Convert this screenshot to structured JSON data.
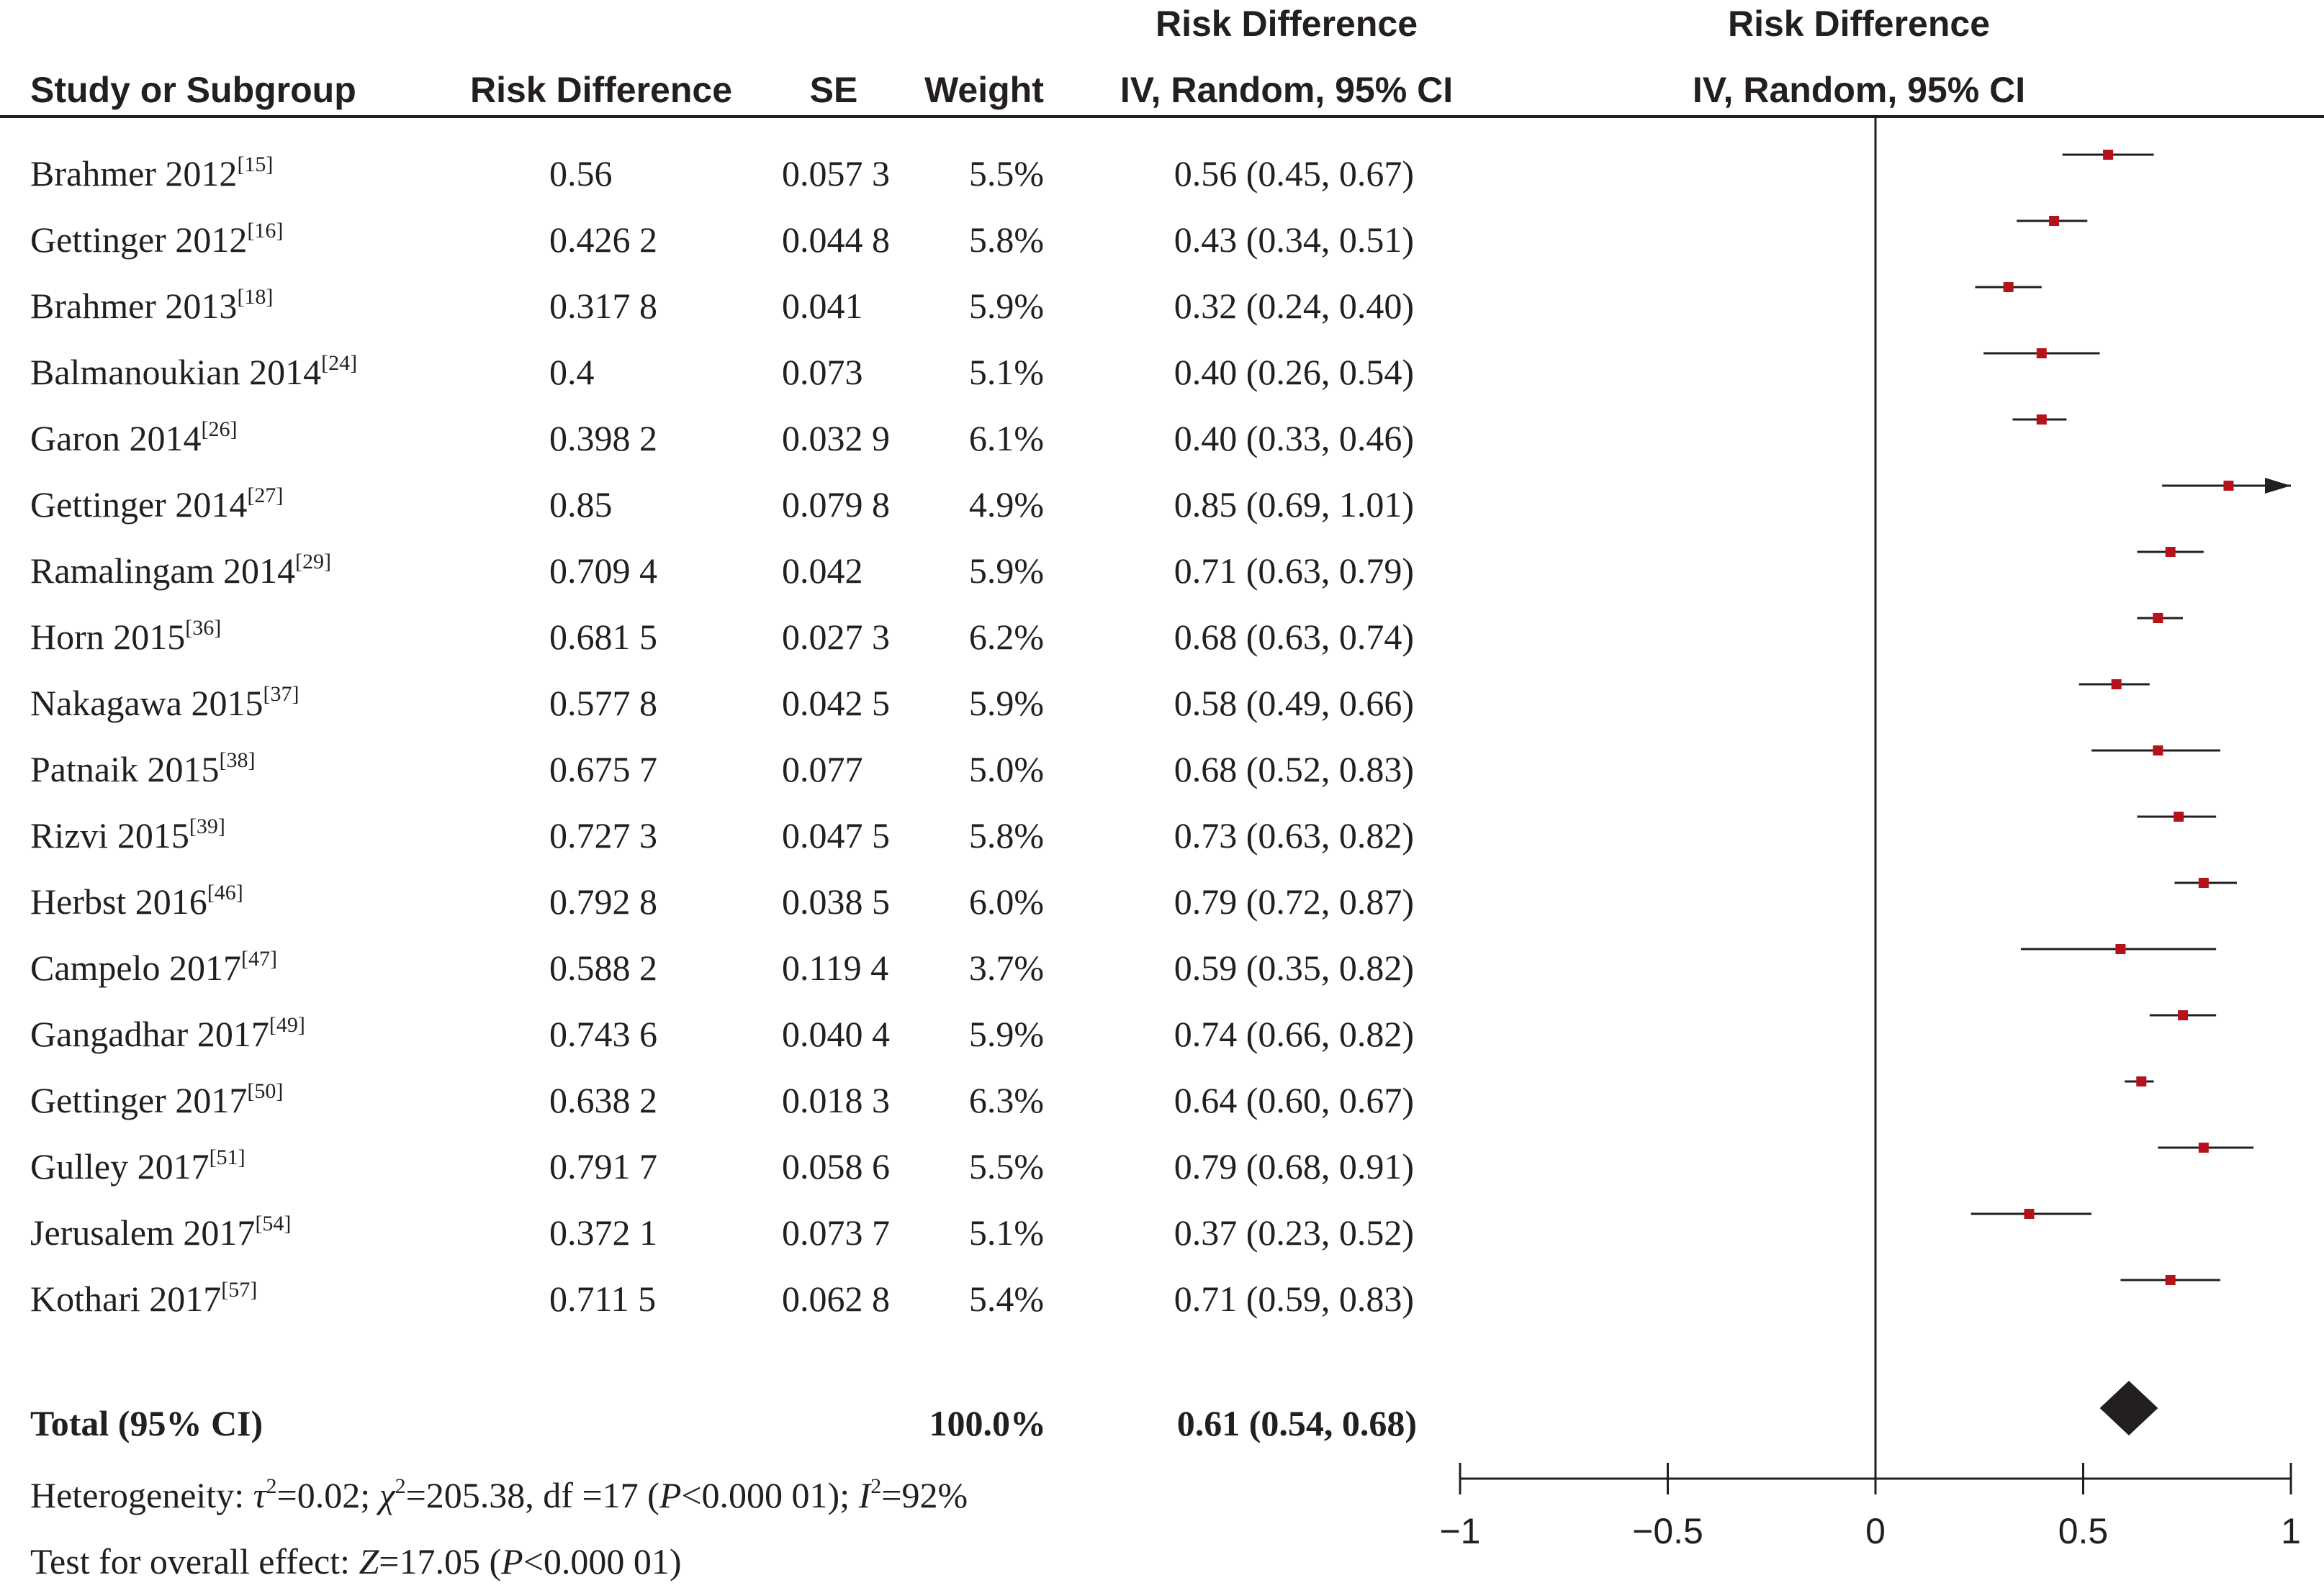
{
  "headers": {
    "study": "Study or Subgroup",
    "rd": "Risk Difference",
    "se": "SE",
    "weight": "Weight",
    "ci_top": "Risk Difference",
    "ci_bottom": "IV, Random, 95% CI",
    "plot_top": "Risk Difference",
    "plot_bottom": "IV, Random, 95% CI"
  },
  "rows": [
    {
      "study": "Brahmer 2012",
      "ref": "[15]",
      "rd": "0.56",
      "se": "0.057 3",
      "weight": "5.5%",
      "ci": "0.56 (0.45, 0.67)"
    },
    {
      "study": "Gettinger 2012",
      "ref": "[16]",
      "rd": "0.426 2",
      "se": "0.044 8",
      "weight": "5.8%",
      "ci": "0.43 (0.34, 0.51)"
    },
    {
      "study": "Brahmer 2013",
      "ref": "[18]",
      "rd": "0.317 8",
      "se": "0.041",
      "weight": "5.9%",
      "ci": "0.32 (0.24, 0.40)"
    },
    {
      "study": "Balmanoukian 2014",
      "ref": "[24]",
      "rd": "0.4",
      "se": "0.073",
      "weight": "5.1%",
      "ci": "0.40 (0.26, 0.54)"
    },
    {
      "study": "Garon 2014",
      "ref": "[26]",
      "rd": "0.398 2",
      "se": "0.032 9",
      "weight": "6.1%",
      "ci": "0.40 (0.33, 0.46)"
    },
    {
      "study": "Gettinger 2014",
      "ref": "[27]",
      "rd": "0.85",
      "se": "0.079 8",
      "weight": "4.9%",
      "ci": "0.85 (0.69, 1.01)"
    },
    {
      "study": "Ramalingam 2014",
      "ref": "[29]",
      "rd": "0.709 4",
      "se": "0.042",
      "weight": "5.9%",
      "ci": "0.71 (0.63, 0.79)"
    },
    {
      "study": "Horn 2015",
      "ref": "[36]",
      "rd": "0.681 5",
      "se": "0.027 3",
      "weight": "6.2%",
      "ci": "0.68 (0.63, 0.74)"
    },
    {
      "study": "Nakagawa 2015",
      "ref": "[37]",
      "rd": "0.577 8",
      "se": "0.042 5",
      "weight": "5.9%",
      "ci": "0.58 (0.49, 0.66)"
    },
    {
      "study": "Patnaik 2015",
      "ref": "[38]",
      "rd": "0.675 7",
      "se": "0.077",
      "weight": "5.0%",
      "ci": "0.68 (0.52, 0.83)"
    },
    {
      "study": "Rizvi 2015",
      "ref": "[39]",
      "rd": "0.727 3",
      "se": "0.047 5",
      "weight": "5.8%",
      "ci": "0.73 (0.63, 0.82)"
    },
    {
      "study": "Herbst 2016",
      "ref": "[46]",
      "rd": "0.792 8",
      "se": "0.038 5",
      "weight": "6.0%",
      "ci": "0.79 (0.72, 0.87)"
    },
    {
      "study": "Campelo 2017",
      "ref": "[47]",
      "rd": "0.588 2",
      "se": "0.119 4",
      "weight": "3.7%",
      "ci": "0.59 (0.35, 0.82)"
    },
    {
      "study": "Gangadhar 2017",
      "ref": "[49]",
      "rd": "0.743 6",
      "se": "0.040 4",
      "weight": "5.9%",
      "ci": "0.74 (0.66, 0.82)"
    },
    {
      "study": "Gettinger 2017",
      "ref": "[50]",
      "rd": "0.638 2",
      "se": "0.018 3",
      "weight": "6.3%",
      "ci": "0.64 (0.60, 0.67)"
    },
    {
      "study": "Gulley 2017",
      "ref": "[51]",
      "rd": "0.791 7",
      "se": "0.058 6",
      "weight": "5.5%",
      "ci": "0.79 (0.68, 0.91)"
    },
    {
      "study": "Jerusalem 2017",
      "ref": "[54]",
      "rd": "0.372 1",
      "se": "0.073 7",
      "weight": "5.1%",
      "ci": "0.37 (0.23, 0.52)"
    },
    {
      "study": "Kothari 2017",
      "ref": "[57]",
      "rd": "0.711 5",
      "se": "0.062 8",
      "weight": "5.4%",
      "ci": "0.71 (0.59, 0.83)"
    }
  ],
  "total": {
    "label": "Total (95% CI)",
    "weight": "100.0%",
    "ci": "0.61 (0.54, 0.68)"
  },
  "heterogeneity": {
    "prefix": "Heterogeneity: ",
    "tau": "τ",
    "tau_value": "=0.02; ",
    "chi": "χ",
    "chi_value": "=205.38, df =17 (",
    "p": "P",
    "p_value": "<0.000 01); ",
    "i": "I",
    "i_value": "=92%",
    "sq": "2"
  },
  "overall": {
    "prefix": "Test for overall effect: ",
    "z": "Z",
    "z_value": "=17.05 (",
    "p": "P",
    "p_value": "<0.000 01)"
  },
  "colors": {
    "marker": "#b5121b",
    "line": "#231f20",
    "text": "#231f20"
  },
  "chart_data": {
    "type": "forest",
    "title": "Risk Difference",
    "xlabel": "IV, Random, 95% CI",
    "xlim": [
      -1,
      1
    ],
    "xticks": [
      -1,
      -0.5,
      0,
      0.5,
      1
    ],
    "xtick_labels": [
      "−1",
      "−0.5",
      "0",
      "0.5",
      "1"
    ],
    "studies": [
      {
        "name": "Brahmer 2012",
        "estimate": 0.56,
        "lower": 0.45,
        "upper": 0.67,
        "weight": 5.5
      },
      {
        "name": "Gettinger 2012",
        "estimate": 0.43,
        "lower": 0.34,
        "upper": 0.51,
        "weight": 5.8
      },
      {
        "name": "Brahmer 2013",
        "estimate": 0.32,
        "lower": 0.24,
        "upper": 0.4,
        "weight": 5.9
      },
      {
        "name": "Balmanoukian 2014",
        "estimate": 0.4,
        "lower": 0.26,
        "upper": 0.54,
        "weight": 5.1
      },
      {
        "name": "Garon 2014",
        "estimate": 0.4,
        "lower": 0.33,
        "upper": 0.46,
        "weight": 6.1
      },
      {
        "name": "Gettinger 2014",
        "estimate": 0.85,
        "lower": 0.69,
        "upper": 1.01,
        "weight": 4.9
      },
      {
        "name": "Ramalingam 2014",
        "estimate": 0.71,
        "lower": 0.63,
        "upper": 0.79,
        "weight": 5.9
      },
      {
        "name": "Horn 2015",
        "estimate": 0.68,
        "lower": 0.63,
        "upper": 0.74,
        "weight": 6.2
      },
      {
        "name": "Nakagawa 2015",
        "estimate": 0.58,
        "lower": 0.49,
        "upper": 0.66,
        "weight": 5.9
      },
      {
        "name": "Patnaik 2015",
        "estimate": 0.68,
        "lower": 0.52,
        "upper": 0.83,
        "weight": 5.0
      },
      {
        "name": "Rizvi 2015",
        "estimate": 0.73,
        "lower": 0.63,
        "upper": 0.82,
        "weight": 5.8
      },
      {
        "name": "Herbst 2016",
        "estimate": 0.79,
        "lower": 0.72,
        "upper": 0.87,
        "weight": 6.0
      },
      {
        "name": "Campelo 2017",
        "estimate": 0.59,
        "lower": 0.35,
        "upper": 0.82,
        "weight": 3.7
      },
      {
        "name": "Gangadhar 2017",
        "estimate": 0.74,
        "lower": 0.66,
        "upper": 0.82,
        "weight": 5.9
      },
      {
        "name": "Gettinger 2017",
        "estimate": 0.64,
        "lower": 0.6,
        "upper": 0.67,
        "weight": 6.3
      },
      {
        "name": "Gulley 2017",
        "estimate": 0.79,
        "lower": 0.68,
        "upper": 0.91,
        "weight": 5.5
      },
      {
        "name": "Jerusalem 2017",
        "estimate": 0.37,
        "lower": 0.23,
        "upper": 0.52,
        "weight": 5.1
      },
      {
        "name": "Kothari 2017",
        "estimate": 0.71,
        "lower": 0.59,
        "upper": 0.83,
        "weight": 5.4
      }
    ],
    "pooled": {
      "estimate": 0.61,
      "lower": 0.54,
      "upper": 0.68
    }
  }
}
